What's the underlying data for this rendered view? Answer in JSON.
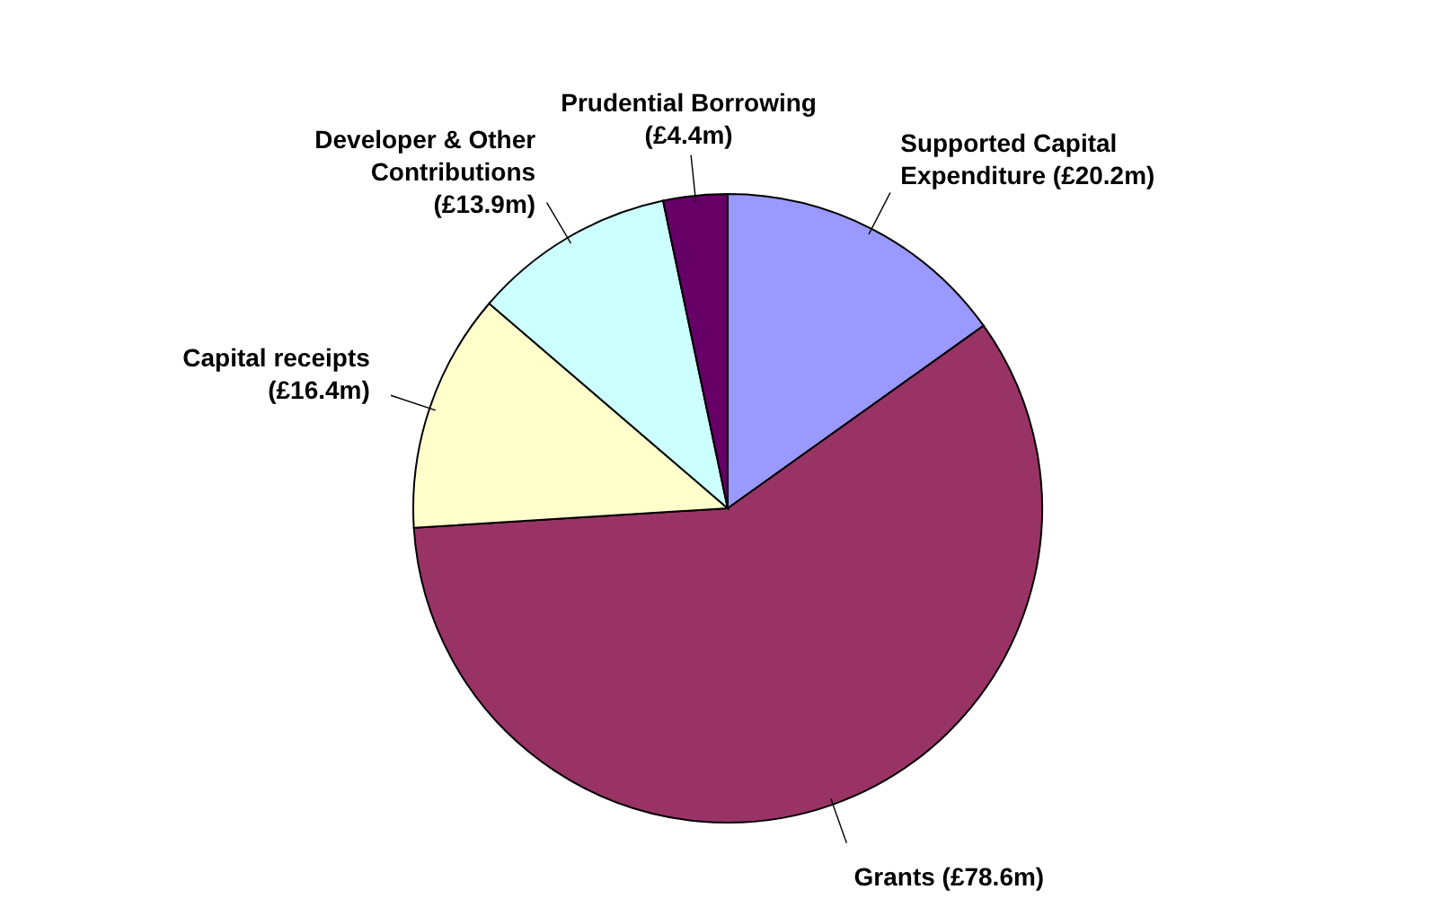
{
  "chart_data": {
    "type": "pie",
    "categories": [
      "Supported Capital Expenditure",
      "Grants",
      "Capital receipts",
      "Developer & Other Contributions",
      "Prudential Borrowing"
    ],
    "values": [
      20.2,
      78.6,
      16.4,
      13.9,
      4.4
    ],
    "value_labels": [
      "(£20.2m)",
      "(£78.6m)",
      "(£16.4m)",
      "(£13.9m)",
      "(£4.4m)"
    ],
    "colors": [
      "#9999ff",
      "#993366",
      "#ffffcc",
      "#ccffff",
      "#660066"
    ]
  }
}
